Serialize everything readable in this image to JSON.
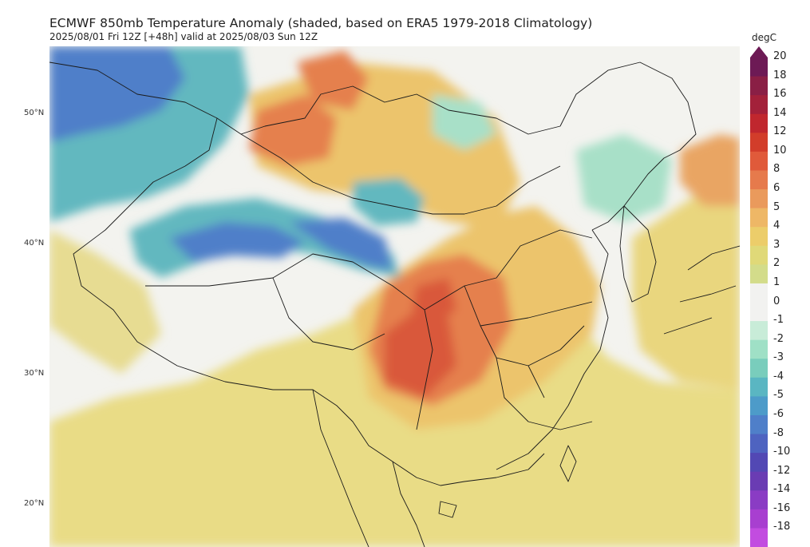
{
  "title": "ECMWF 850mb Temperature Anomaly (shaded, based on ERA5 1979-2018 Climatology)",
  "subtitle": "2025/08/01 Fri 12Z [+48h] valid at 2025/08/03 Sun 12Z",
  "latitude_labels": [
    "50°N",
    "40°N",
    "30°N",
    "20°N"
  ],
  "colorbar": {
    "unit": "degC",
    "levels": [
      "20",
      "18",
      "16",
      "14",
      "12",
      "10",
      "8",
      "6",
      "5",
      "4",
      "3",
      "2",
      "1",
      "0",
      "-1",
      "-2",
      "-3",
      "-4",
      "-5",
      "-6",
      "-8",
      "-10",
      "-12",
      "-14",
      "-16",
      "-18"
    ],
    "colors": [
      "#6d1a55",
      "#8a1f45",
      "#a3213a",
      "#c0272e",
      "#d23d2a",
      "#e05a3a",
      "#e67a4c",
      "#ea9a5c",
      "#eeb766",
      "#eccd6a",
      "#e0d978",
      "#d3dc8a",
      "#f2f2f0",
      "#f2f2f0",
      "#c8ecd8",
      "#9fe0c6",
      "#79cdbc",
      "#5ab6c2",
      "#4d9bc9",
      "#4f7fc9",
      "#4e63c0",
      "#5248b4",
      "#6a3cb3",
      "#8a3cc4",
      "#a83fd0",
      "#c24ce0"
    ]
  },
  "map_colors": {
    "background": "#f3f3ef",
    "warm_light": "#e9dc86",
    "warm_mid": "#efbd69",
    "warm_strong": "#e5804e",
    "warm_core": "#d9583a",
    "cool_light": "#a8e0c8",
    "cool_mid": "#62b8bf",
    "cool_strong": "#4f7fc9",
    "cool_core": "#4b59bd",
    "border_line": "#1a1a1a"
  }
}
